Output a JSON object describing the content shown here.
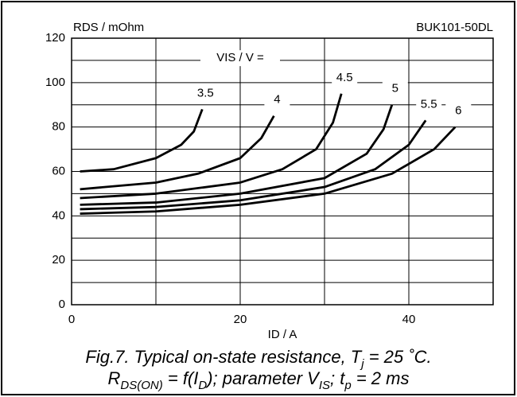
{
  "chart_data": {
    "type": "line",
    "title": "BUK101-50DL",
    "y_label": "RDS / mOhm",
    "x_label": "ID / A",
    "legend_title": "VIS / V =",
    "xlim": [
      0,
      50
    ],
    "ylim": [
      0,
      120
    ],
    "xticks": [
      0,
      20,
      40
    ],
    "yticks": [
      0,
      20,
      40,
      60,
      80,
      100,
      120
    ],
    "x_minor_ticks": [
      10,
      30
    ],
    "y_minor_ticks": [
      10,
      30,
      50,
      70,
      90,
      110
    ],
    "grid": true,
    "series": [
      {
        "name": "3.5",
        "color": "#000000",
        "x": [
          1,
          5,
          10,
          13,
          14.5,
          15.5
        ],
        "values": [
          60,
          61,
          66,
          72,
          78,
          88
        ]
      },
      {
        "name": "4",
        "color": "#000000",
        "x": [
          1,
          10,
          15,
          20,
          22.5,
          24
        ],
        "values": [
          52,
          55,
          59,
          66,
          75,
          85
        ]
      },
      {
        "name": "4.5",
        "color": "#000000",
        "x": [
          1,
          10,
          20,
          25,
          29,
          31,
          32
        ],
        "values": [
          48,
          50,
          55,
          61,
          70,
          82,
          95
        ]
      },
      {
        "name": "5",
        "color": "#000000",
        "x": [
          1,
          10,
          20,
          30,
          35,
          37,
          38
        ],
        "values": [
          45,
          46,
          50,
          57,
          68,
          79,
          90
        ]
      },
      {
        "name": "5.5",
        "color": "#000000",
        "x": [
          1,
          10,
          20,
          30,
          36,
          40,
          42
        ],
        "values": [
          43,
          44,
          47,
          53,
          61,
          72,
          83
        ]
      },
      {
        "name": "6",
        "color": "#000000",
        "x": [
          1,
          10,
          20,
          30,
          38,
          43,
          45.5
        ],
        "values": [
          41,
          42,
          45,
          50,
          59,
          70,
          80
        ]
      }
    ],
    "caption": [
      [
        {
          "text": "Fig.7.   Typical on-state resistance, T"
        },
        {
          "text": "j",
          "sub": true
        },
        {
          "text": " = 25 ˚C."
        }
      ],
      [
        {
          "text": "R"
        },
        {
          "text": "DS(ON)",
          "sub": true
        },
        {
          "text": " = f(I"
        },
        {
          "text": "D",
          "sub": true
        },
        {
          "text": "); parameter V"
        },
        {
          "text": "IS",
          "sub": true
        },
        {
          "text": "; t"
        },
        {
          "text": "p",
          "sub": true
        },
        {
          "text": " = 2 ms"
        }
      ]
    ]
  }
}
